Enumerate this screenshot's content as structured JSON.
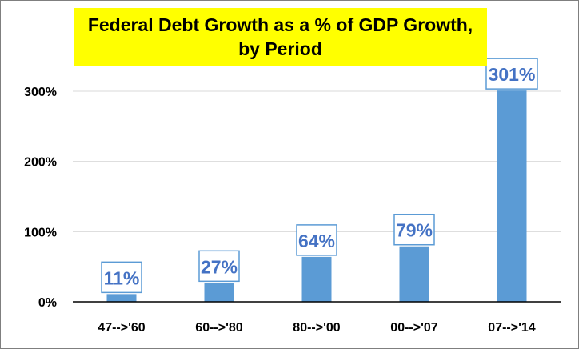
{
  "chart_data": {
    "type": "bar",
    "title_lines": [
      "Federal Debt Growth as a % of GDP Growth,",
      "by Period"
    ],
    "categories": [
      "47-->'60",
      "60-->'80",
      "80-->'00",
      "00-->'07",
      "07-->'14"
    ],
    "values": [
      11,
      27,
      64,
      79,
      301
    ],
    "data_labels": [
      "11%",
      "27%",
      "64%",
      "79%",
      "301%"
    ],
    "ylim": [
      0,
      300
    ],
    "yticks": [
      0,
      100,
      200,
      300
    ],
    "ytick_labels": [
      "0%",
      "100%",
      "200%",
      "300%"
    ],
    "xlabel": "",
    "ylabel": "",
    "grid": true,
    "legend": "none",
    "colors": {
      "bar": "#5b9bd5",
      "label_text": "#4472c4",
      "label_border": "#5b9bd5",
      "title_background": "#ffff00",
      "gridline": "#d9d9d9",
      "axis": "#000000"
    }
  }
}
